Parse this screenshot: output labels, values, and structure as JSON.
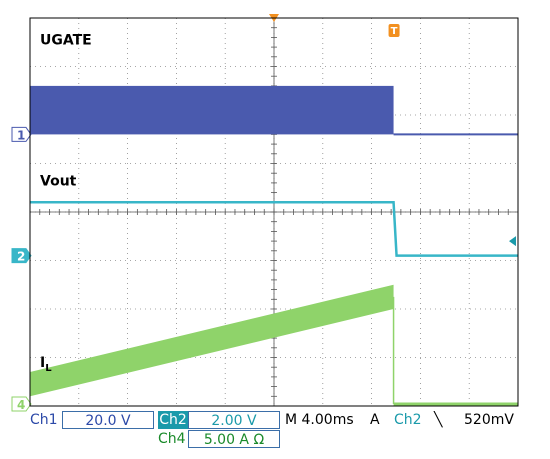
{
  "chart_data": {
    "type": "line",
    "title": "",
    "xlabel": "",
    "ylabel": "",
    "grid": true,
    "time_per_div_ms": 4,
    "x_divisions": 10,
    "y_divisions": 8,
    "trigger_time_ms": 29.8,
    "channels": [
      {
        "id": "ch1",
        "marker": "1",
        "name": "UGATE",
        "color": "#4a5aae",
        "scale": "20.0 V",
        "kind": "switching",
        "high_div": 1.0,
        "stop_ms": 29.8,
        "ground_div": 2.0
      },
      {
        "id": "ch2",
        "marker": "2",
        "name": "Vout",
        "color": "#38b6c8",
        "scale": "2.00 V",
        "kind": "step_down",
        "level_div": 1.1,
        "drop_ms": 29.8,
        "ground_div": 2.0
      },
      {
        "id": "ch4",
        "marker": "4",
        "name": "I",
        "subscript": "L",
        "color": "#8fd36a",
        "scale": "5.00 A Ω",
        "kind": "ramp",
        "start_div": 0.45,
        "end_div": 2.25,
        "ripple_div": 0.5,
        "stop_ms": 29.8,
        "ground_div": 0.1
      }
    ]
  },
  "readout": {
    "ch1_label": "Ch1",
    "ch1_scale": "20.0 V",
    "ch2_label": "Ch2",
    "ch2_scale": "2.00 V",
    "ch4_label": "Ch4",
    "ch4_scale": "5.00 A Ω",
    "timebase": "M 4.00ms",
    "trigger_mode": "A",
    "trigger_source": "Ch2",
    "trigger_slope": "╲",
    "trigger_level": "520mV"
  },
  "trigger_marker": "T"
}
